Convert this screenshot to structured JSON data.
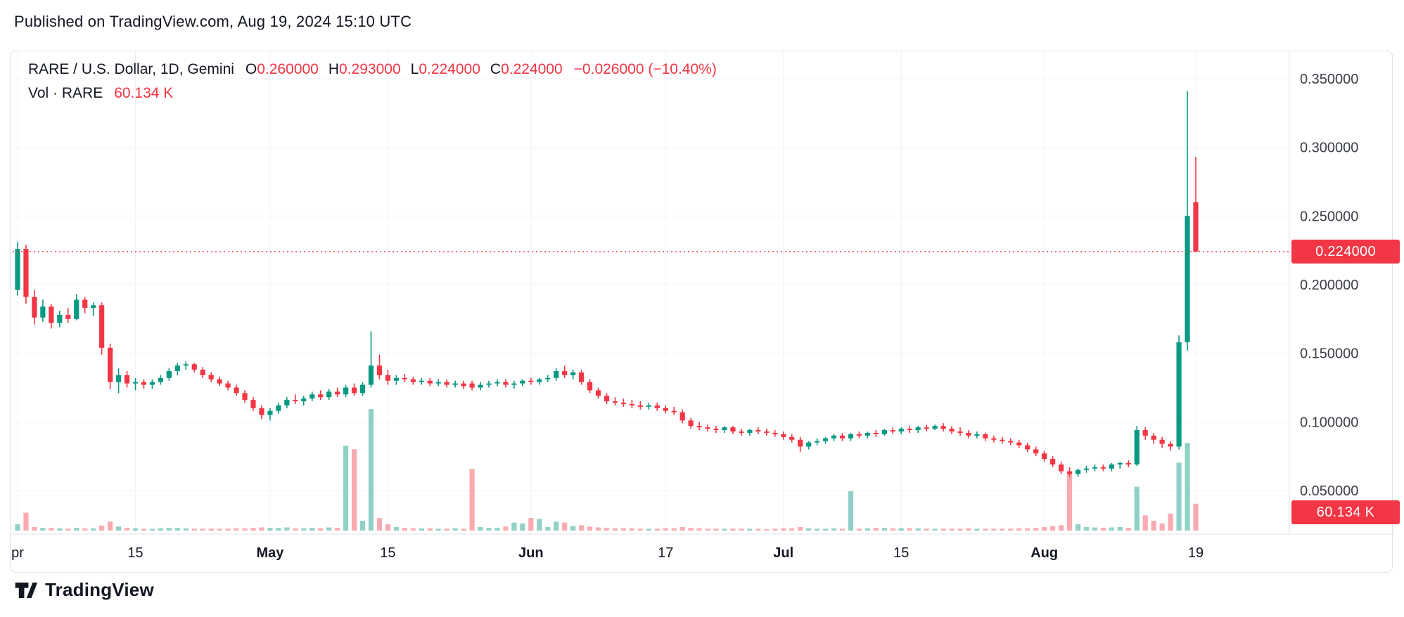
{
  "header": {
    "published": "Published on TradingView.com, Aug 19, 2024 15:10 UTC"
  },
  "legend": {
    "symbol": "RARE / U.S. Dollar, 1D, Gemini",
    "o_label": "O",
    "o_value": "0.260000",
    "h_label": "H",
    "h_value": "0.293000",
    "l_label": "L",
    "l_value": "0.224000",
    "c_label": "C",
    "c_value": "0.224000",
    "change": "−0.026000 (−10.40%)",
    "vol_label": "Vol · RARE",
    "vol_value": "60.134 K"
  },
  "badges": {
    "price": "0.224000",
    "volume": "60.134 K"
  },
  "price_line": {
    "value": 0.224,
    "label": "0.224000"
  },
  "footer": {
    "brand": "TradingView"
  },
  "colors": {
    "up": "#089981",
    "down": "#f23645",
    "up_vol": "rgba(8,153,129,0.45)",
    "down_vol": "rgba(242,54,69,0.42)",
    "grid": "#f0f3fa",
    "border": "#e0e3eb",
    "text": "#131722",
    "muted": "#3a3e46",
    "accent_red": "#f23645"
  },
  "axes": {
    "y_ticks": [
      "0.350000",
      "0.300000",
      "0.250000",
      "0.200000",
      "0.150000",
      "0.100000",
      "0.050000"
    ],
    "x_ticks": [
      {
        "i": 0,
        "label": "pr",
        "major": false
      },
      {
        "i": 14,
        "label": "15",
        "major": false
      },
      {
        "i": 30,
        "label": "May",
        "major": true
      },
      {
        "i": 44,
        "label": "15",
        "major": false
      },
      {
        "i": 61,
        "label": "Jun",
        "major": true
      },
      {
        "i": 77,
        "label": "17",
        "major": false
      },
      {
        "i": 91,
        "label": "Jul",
        "major": true
      },
      {
        "i": 105,
        "label": "15",
        "major": false
      },
      {
        "i": 122,
        "label": "Aug",
        "major": true
      },
      {
        "i": 140,
        "label": "19",
        "major": false
      }
    ]
  },
  "chart_data": {
    "type": "candlestick",
    "has_volume": true,
    "symbol": "RARE / U.S. Dollar",
    "interval": "1D",
    "exchange": "Gemini",
    "start_date": "2024-04-01",
    "end_date": "2024-08-19",
    "columns": [
      "open",
      "high",
      "low",
      "close",
      "volume_K"
    ],
    "ylim": [
      0.032,
      0.368
    ],
    "vol_max_K": 280,
    "price_ticks": [
      0.35,
      0.3,
      0.25,
      0.2,
      0.15,
      0.1,
      0.05
    ],
    "last_bar": {
      "open": 0.26,
      "high": 0.293,
      "low": 0.224,
      "close": 0.224,
      "volume_K": 60.134
    },
    "candles": [
      [
        0.196,
        0.231,
        0.192,
        0.226,
        14
      ],
      [
        0.226,
        0.229,
        0.186,
        0.191,
        40
      ],
      [
        0.191,
        0.196,
        0.171,
        0.176,
        8
      ],
      [
        0.176,
        0.189,
        0.173,
        0.184,
        6
      ],
      [
        0.184,
        0.186,
        0.168,
        0.172,
        6
      ],
      [
        0.172,
        0.181,
        0.169,
        0.178,
        5
      ],
      [
        0.178,
        0.183,
        0.172,
        0.175,
        4
      ],
      [
        0.175,
        0.193,
        0.174,
        0.189,
        6
      ],
      [
        0.189,
        0.191,
        0.179,
        0.183,
        5
      ],
      [
        0.183,
        0.187,
        0.177,
        0.185,
        5
      ],
      [
        0.185,
        0.187,
        0.149,
        0.154,
        11
      ],
      [
        0.154,
        0.157,
        0.124,
        0.129,
        20
      ],
      [
        0.129,
        0.139,
        0.121,
        0.134,
        9
      ],
      [
        0.134,
        0.137,
        0.125,
        0.128,
        6
      ],
      [
        0.128,
        0.132,
        0.123,
        0.129,
        5
      ],
      [
        0.129,
        0.131,
        0.124,
        0.127,
        4
      ],
      [
        0.127,
        0.131,
        0.124,
        0.129,
        4
      ],
      [
        0.129,
        0.134,
        0.127,
        0.132,
        5
      ],
      [
        0.132,
        0.139,
        0.13,
        0.137,
        6
      ],
      [
        0.137,
        0.143,
        0.134,
        0.141,
        6
      ],
      [
        0.141,
        0.144,
        0.138,
        0.142,
        5
      ],
      [
        0.142,
        0.143,
        0.136,
        0.138,
        4
      ],
      [
        0.138,
        0.14,
        0.132,
        0.134,
        4
      ],
      [
        0.134,
        0.136,
        0.129,
        0.131,
        4
      ],
      [
        0.131,
        0.133,
        0.126,
        0.128,
        4
      ],
      [
        0.128,
        0.13,
        0.123,
        0.125,
        4
      ],
      [
        0.125,
        0.127,
        0.119,
        0.121,
        5
      ],
      [
        0.121,
        0.123,
        0.114,
        0.116,
        5
      ],
      [
        0.116,
        0.118,
        0.108,
        0.11,
        6
      ],
      [
        0.11,
        0.112,
        0.102,
        0.105,
        7
      ],
      [
        0.105,
        0.11,
        0.101,
        0.108,
        6
      ],
      [
        0.108,
        0.114,
        0.106,
        0.112,
        6
      ],
      [
        0.112,
        0.118,
        0.11,
        0.116,
        7
      ],
      [
        0.116,
        0.12,
        0.113,
        0.115,
        5
      ],
      [
        0.115,
        0.119,
        0.112,
        0.117,
        5
      ],
      [
        0.117,
        0.122,
        0.115,
        0.12,
        6
      ],
      [
        0.12,
        0.123,
        0.116,
        0.118,
        5
      ],
      [
        0.118,
        0.124,
        0.116,
        0.122,
        7
      ],
      [
        0.122,
        0.125,
        0.118,
        0.12,
        6
      ],
      [
        0.12,
        0.127,
        0.118,
        0.125,
        190
      ],
      [
        0.125,
        0.128,
        0.119,
        0.121,
        182
      ],
      [
        0.121,
        0.129,
        0.119,
        0.127,
        22
      ],
      [
        0.127,
        0.166,
        0.125,
        0.141,
        272
      ],
      [
        0.141,
        0.149,
        0.131,
        0.134,
        28
      ],
      [
        0.134,
        0.138,
        0.127,
        0.13,
        14
      ],
      [
        0.13,
        0.134,
        0.127,
        0.132,
        8
      ],
      [
        0.132,
        0.135,
        0.129,
        0.131,
        6
      ],
      [
        0.131,
        0.133,
        0.127,
        0.129,
        5
      ],
      [
        0.129,
        0.132,
        0.127,
        0.13,
        5
      ],
      [
        0.13,
        0.132,
        0.126,
        0.128,
        5
      ],
      [
        0.128,
        0.131,
        0.126,
        0.129,
        4
      ],
      [
        0.129,
        0.131,
        0.125,
        0.127,
        4
      ],
      [
        0.127,
        0.13,
        0.125,
        0.128,
        5
      ],
      [
        0.128,
        0.13,
        0.124,
        0.126,
        4
      ],
      [
        0.128,
        0.13,
        0.123,
        0.125,
        138
      ],
      [
        0.125,
        0.129,
        0.123,
        0.127,
        8
      ],
      [
        0.127,
        0.13,
        0.125,
        0.128,
        6
      ],
      [
        0.128,
        0.131,
        0.126,
        0.129,
        6
      ],
      [
        0.129,
        0.131,
        0.125,
        0.127,
        9
      ],
      [
        0.127,
        0.13,
        0.124,
        0.128,
        18
      ],
      [
        0.128,
        0.131,
        0.126,
        0.13,
        16
      ],
      [
        0.13,
        0.132,
        0.127,
        0.129,
        28
      ],
      [
        0.129,
        0.132,
        0.127,
        0.131,
        26
      ],
      [
        0.131,
        0.134,
        0.129,
        0.132,
        8
      ],
      [
        0.132,
        0.139,
        0.13,
        0.137,
        20
      ],
      [
        0.137,
        0.141,
        0.132,
        0.134,
        18
      ],
      [
        0.134,
        0.138,
        0.131,
        0.136,
        10
      ],
      [
        0.136,
        0.138,
        0.127,
        0.129,
        12
      ],
      [
        0.129,
        0.131,
        0.121,
        0.123,
        9
      ],
      [
        0.123,
        0.125,
        0.117,
        0.119,
        7
      ],
      [
        0.119,
        0.121,
        0.113,
        0.115,
        6
      ],
      [
        0.115,
        0.118,
        0.112,
        0.114,
        5
      ],
      [
        0.114,
        0.117,
        0.111,
        0.113,
        5
      ],
      [
        0.113,
        0.116,
        0.11,
        0.112,
        5
      ],
      [
        0.112,
        0.115,
        0.109,
        0.111,
        4
      ],
      [
        0.111,
        0.114,
        0.109,
        0.112,
        4
      ],
      [
        0.112,
        0.114,
        0.108,
        0.11,
        4
      ],
      [
        0.11,
        0.112,
        0.106,
        0.108,
        5
      ],
      [
        0.108,
        0.111,
        0.105,
        0.107,
        5
      ],
      [
        0.107,
        0.109,
        0.099,
        0.101,
        8
      ],
      [
        0.101,
        0.103,
        0.095,
        0.097,
        6
      ],
      [
        0.097,
        0.1,
        0.094,
        0.096,
        5
      ],
      [
        0.096,
        0.098,
        0.093,
        0.095,
        4
      ],
      [
        0.095,
        0.097,
        0.092,
        0.094,
        4
      ],
      [
        0.094,
        0.097,
        0.092,
        0.096,
        4
      ],
      [
        0.096,
        0.097,
        0.091,
        0.093,
        4
      ],
      [
        0.093,
        0.095,
        0.09,
        0.092,
        4
      ],
      [
        0.092,
        0.095,
        0.09,
        0.094,
        4
      ],
      [
        0.094,
        0.096,
        0.091,
        0.093,
        4
      ],
      [
        0.093,
        0.095,
        0.09,
        0.092,
        3
      ],
      [
        0.092,
        0.094,
        0.089,
        0.091,
        4
      ],
      [
        0.091,
        0.093,
        0.087,
        0.089,
        5
      ],
      [
        0.089,
        0.091,
        0.085,
        0.087,
        5
      ],
      [
        0.087,
        0.089,
        0.078,
        0.082,
        8
      ],
      [
        0.082,
        0.086,
        0.08,
        0.085,
        5
      ],
      [
        0.085,
        0.088,
        0.083,
        0.086,
        4
      ],
      [
        0.086,
        0.089,
        0.084,
        0.088,
        4
      ],
      [
        0.088,
        0.091,
        0.086,
        0.09,
        5
      ],
      [
        0.09,
        0.092,
        0.086,
        0.088,
        4
      ],
      [
        0.088,
        0.092,
        0.086,
        0.091,
        88
      ],
      [
        0.091,
        0.093,
        0.088,
        0.09,
        4
      ],
      [
        0.09,
        0.093,
        0.088,
        0.092,
        5
      ],
      [
        0.092,
        0.094,
        0.089,
        0.091,
        6
      ],
      [
        0.091,
        0.095,
        0.09,
        0.094,
        6
      ],
      [
        0.094,
        0.096,
        0.091,
        0.093,
        5
      ],
      [
        0.093,
        0.096,
        0.091,
        0.095,
        5
      ],
      [
        0.095,
        0.097,
        0.092,
        0.094,
        5
      ],
      [
        0.094,
        0.097,
        0.092,
        0.096,
        5
      ],
      [
        0.096,
        0.098,
        0.093,
        0.095,
        4
      ],
      [
        0.095,
        0.098,
        0.094,
        0.097,
        4
      ],
      [
        0.097,
        0.099,
        0.093,
        0.095,
        4
      ],
      [
        0.095,
        0.097,
        0.091,
        0.093,
        4
      ],
      [
        0.093,
        0.096,
        0.09,
        0.092,
        4
      ],
      [
        0.092,
        0.094,
        0.088,
        0.09,
        5
      ],
      [
        0.09,
        0.093,
        0.088,
        0.091,
        4
      ],
      [
        0.091,
        0.092,
        0.086,
        0.088,
        4
      ],
      [
        0.088,
        0.09,
        0.085,
        0.087,
        4
      ],
      [
        0.087,
        0.089,
        0.084,
        0.086,
        4
      ],
      [
        0.086,
        0.088,
        0.083,
        0.085,
        4
      ],
      [
        0.085,
        0.087,
        0.081,
        0.083,
        5
      ],
      [
        0.083,
        0.085,
        0.078,
        0.08,
        5
      ],
      [
        0.08,
        0.082,
        0.075,
        0.077,
        6
      ],
      [
        0.077,
        0.079,
        0.071,
        0.073,
        8
      ],
      [
        0.073,
        0.075,
        0.067,
        0.069,
        10
      ],
      [
        0.069,
        0.071,
        0.062,
        0.064,
        12
      ],
      [
        0.064,
        0.067,
        0.06,
        0.062,
        128
      ],
      [
        0.062,
        0.066,
        0.06,
        0.065,
        14
      ],
      [
        0.065,
        0.068,
        0.063,
        0.066,
        8
      ],
      [
        0.066,
        0.069,
        0.064,
        0.067,
        7
      ],
      [
        0.067,
        0.069,
        0.064,
        0.066,
        6
      ],
      [
        0.066,
        0.07,
        0.064,
        0.069,
        7
      ],
      [
        0.069,
        0.071,
        0.066,
        0.07,
        8
      ],
      [
        0.07,
        0.072,
        0.067,
        0.069,
        6
      ],
      [
        0.069,
        0.097,
        0.068,
        0.094,
        98
      ],
      [
        0.094,
        0.096,
        0.087,
        0.09,
        34
      ],
      [
        0.09,
        0.092,
        0.084,
        0.087,
        22
      ],
      [
        0.087,
        0.089,
        0.081,
        0.084,
        16
      ],
      [
        0.084,
        0.086,
        0.079,
        0.082,
        38
      ],
      [
        0.082,
        0.163,
        0.08,
        0.158,
        152
      ],
      [
        0.158,
        0.341,
        0.152,
        0.25,
        196
      ],
      [
        0.26,
        0.293,
        0.224,
        0.224,
        60.134
      ]
    ]
  }
}
